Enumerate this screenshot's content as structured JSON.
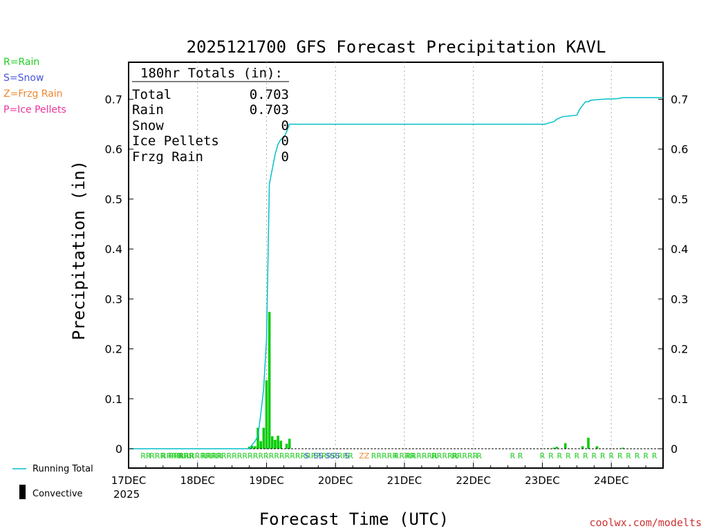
{
  "colors": {
    "rain": "#22cc22",
    "snow": "#4455dd",
    "frzg_rain": "#ee8833",
    "ice_pellets": "#ee3399",
    "running_total": "#00c0c8",
    "bars": "#00cc00",
    "credit": "#cc3333"
  },
  "legend": {
    "rain": "R=Rain",
    "snow": "S=Snow",
    "frzg_rain": "Z=Frzg Rain",
    "ice_pellets": "P=Ice Pellets"
  },
  "bottom_legend": {
    "running_total": "Running Total",
    "convective": "Convective"
  },
  "credit": "coolwx.com/modelts",
  "totals": {
    "header": "180hr Totals (in):",
    "rows": [
      {
        "label": "Total",
        "value": "0.703"
      },
      {
        "label": "Rain",
        "value": "0.703"
      },
      {
        "label": "Snow",
        "value": "0"
      },
      {
        "label": "Ice Pellets",
        "value": "0"
      },
      {
        "label": "Frzg Rain",
        "value": "0"
      }
    ]
  },
  "chart_data": {
    "type": "bar",
    "title": "2025121700 GFS Forecast Precipitation KAVL",
    "xlabel": "Forecast Time (UTC)",
    "ylabel": "Precipitation (in)",
    "ylim": [
      0,
      0.78
    ],
    "xlim_hours": [
      0,
      186
    ],
    "y_ticks": [
      0,
      0.1,
      0.2,
      0.3,
      0.4,
      0.5,
      0.6,
      0.7
    ],
    "y_tick_labels": [
      "0",
      "0.1",
      "0.2",
      "0.3",
      "0.4",
      "0.5",
      "0.6",
      "0.7"
    ],
    "x_ticks": [
      {
        "hour": 0,
        "label": "17DEC"
      },
      {
        "hour": 24,
        "label": "18DEC"
      },
      {
        "hour": 48,
        "label": "19DEC"
      },
      {
        "hour": 72,
        "label": "20DEC"
      },
      {
        "hour": 96,
        "label": "21DEC"
      },
      {
        "hour": 120,
        "label": "22DEC"
      },
      {
        "hour": 144,
        "label": "23DEC"
      },
      {
        "hour": 168,
        "label": "24DEC"
      }
    ],
    "year_label": "2025",
    "grid_x": true,
    "series": [
      {
        "name": "Period Precipitation",
        "kind": "bars",
        "points": [
          [
            42,
            0.004
          ],
          [
            43,
            0.006
          ],
          [
            44,
            0.005
          ],
          [
            45,
            0.042
          ],
          [
            46,
            0.015
          ],
          [
            47,
            0.042
          ],
          [
            48,
            0.137
          ],
          [
            49,
            0.274
          ],
          [
            50,
            0.025
          ],
          [
            51,
            0.018
          ],
          [
            52,
            0.026
          ],
          [
            53,
            0.016
          ],
          [
            55,
            0.01
          ],
          [
            56,
            0.02
          ],
          [
            146,
            0.001
          ],
          [
            148,
            0.002
          ],
          [
            149,
            0.004
          ],
          [
            152,
            0.011
          ],
          [
            158,
            0.005
          ],
          [
            160,
            0.022
          ],
          [
            163,
            0.005
          ],
          [
            172,
            0.002
          ]
        ]
      },
      {
        "name": "Running Total",
        "kind": "line",
        "points": [
          [
            0,
            0
          ],
          [
            42,
            0
          ],
          [
            43,
            0.008
          ],
          [
            44,
            0.015
          ],
          [
            45,
            0.025
          ],
          [
            46,
            0.07
          ],
          [
            47,
            0.12
          ],
          [
            48,
            0.22
          ],
          [
            49,
            0.53
          ],
          [
            50,
            0.56
          ],
          [
            51,
            0.59
          ],
          [
            52,
            0.61
          ],
          [
            53,
            0.62
          ],
          [
            54,
            0.623
          ],
          [
            55,
            0.635
          ],
          [
            56,
            0.65
          ],
          [
            145,
            0.65
          ],
          [
            146,
            0.652
          ],
          [
            148,
            0.655
          ],
          [
            149,
            0.66
          ],
          [
            151,
            0.665
          ],
          [
            156,
            0.668
          ],
          [
            157,
            0.68
          ],
          [
            159,
            0.695
          ],
          [
            160,
            0.695
          ],
          [
            161,
            0.698
          ],
          [
            165,
            0.7
          ],
          [
            170,
            0.701
          ],
          [
            172,
            0.703
          ],
          [
            186,
            0.703
          ]
        ]
      }
    ],
    "ptype_markers": [
      {
        "hour": 6,
        "text": "RR",
        "type": "rain"
      },
      {
        "hour": 10,
        "text": "RRR",
        "type": "rain"
      },
      {
        "hour": 15,
        "text": "RRRR",
        "type": "rain"
      },
      {
        "hour": 20,
        "text": "RRR",
        "type": "rain"
      },
      {
        "hour": 29,
        "text": "RRRR",
        "type": "rain"
      },
      {
        "hour": 46,
        "text": "RRRRRRRRRRRRRRRRRRRRRRRRRRRRRRRRRRR",
        "type": "rain"
      },
      {
        "hour": 62,
        "text": "S",
        "type": "snow"
      },
      {
        "hour": 66,
        "text": "SS",
        "type": "snow"
      },
      {
        "hour": 71,
        "text": "SSS",
        "type": "snow"
      },
      {
        "hour": 76,
        "text": "S",
        "type": "snow"
      },
      {
        "hour": 82,
        "text": "ZZ",
        "type": "frzg_rain"
      },
      {
        "hour": 89,
        "text": "RRRRR",
        "type": "rain"
      },
      {
        "hour": 96,
        "text": "RRRR",
        "type": "rain"
      },
      {
        "hour": 102,
        "text": "RRRRRR",
        "type": "rain"
      },
      {
        "hour": 110,
        "text": "RRRRR",
        "type": "rain"
      },
      {
        "hour": 117,
        "text": "RRRRR",
        "type": "rain"
      },
      {
        "hour": 122,
        "text": "R",
        "type": "rain"
      },
      {
        "hour": 135,
        "text": "R R",
        "type": "rain"
      },
      {
        "hour": 144,
        "text": "R",
        "type": "rain"
      },
      {
        "hour": 147,
        "text": "R",
        "type": "rain"
      },
      {
        "hour": 150,
        "text": "R",
        "type": "rain"
      },
      {
        "hour": 153,
        "text": "R",
        "type": "rain"
      },
      {
        "hour": 156,
        "text": "R",
        "type": "rain"
      },
      {
        "hour": 159,
        "text": "R",
        "type": "rain"
      },
      {
        "hour": 162,
        "text": "R",
        "type": "rain"
      },
      {
        "hour": 165,
        "text": "R",
        "type": "rain"
      },
      {
        "hour": 168,
        "text": "R",
        "type": "rain"
      },
      {
        "hour": 171,
        "text": "R",
        "type": "rain"
      },
      {
        "hour": 174,
        "text": "R",
        "type": "rain"
      },
      {
        "hour": 177,
        "text": "R",
        "type": "rain"
      },
      {
        "hour": 180,
        "text": "R",
        "type": "rain"
      },
      {
        "hour": 183,
        "text": "R",
        "type": "rain"
      }
    ]
  }
}
